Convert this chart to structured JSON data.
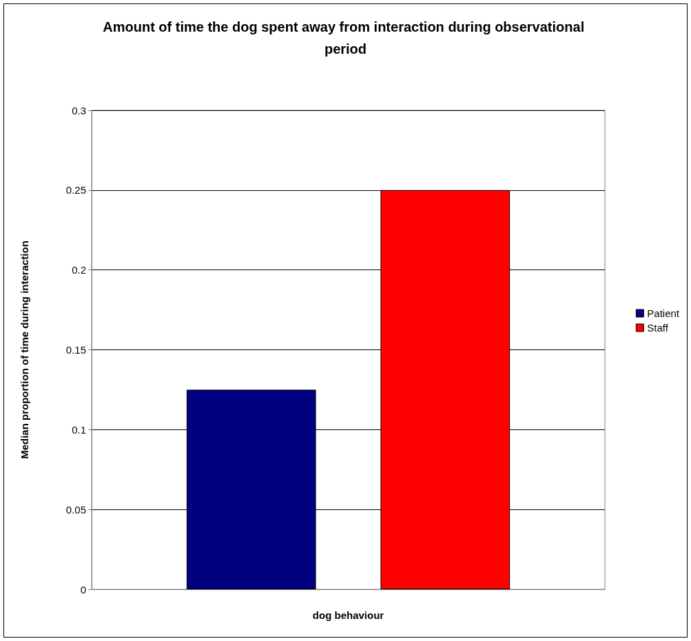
{
  "chart_data": {
    "type": "bar",
    "title": "Amount of time the dog spent away from interaction during observational period",
    "xlabel": "dog behaviour",
    "ylabel": "Median proportion of time during interaction",
    "categories": [
      null
    ],
    "series": [
      {
        "name": "Patient",
        "color": "#000080",
        "values": [
          0.125
        ]
      },
      {
        "name": "Staff",
        "color": "#ff0000",
        "values": [
          0.25
        ]
      }
    ],
    "ylim": [
      0,
      0.3
    ],
    "yticks": [
      0,
      0.05,
      0.1,
      0.15,
      0.2,
      0.25,
      0.3
    ],
    "grid": "y",
    "legend": "right"
  }
}
